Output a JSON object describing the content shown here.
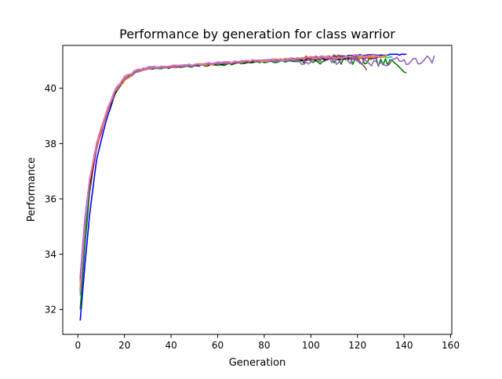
{
  "chart_data": {
    "type": "line",
    "title": "Performance by generation for class warrior",
    "xlabel": "Generation",
    "ylabel": "Performance",
    "xlim": [
      -6.5,
      160.5
    ],
    "ylim": [
      31.1,
      41.55
    ],
    "xticks": [
      0,
      20,
      40,
      60,
      80,
      100,
      120,
      140,
      160
    ],
    "yticks": [
      32,
      34,
      36,
      38,
      40
    ],
    "xtick_labels": [
      "0",
      "20",
      "40",
      "60",
      "80",
      "100",
      "120",
      "140",
      "160"
    ],
    "ytick_labels": [
      "32",
      "34",
      "36",
      "38",
      "40"
    ],
    "grid": false,
    "legend": "none",
    "series": [
      {
        "name": "blue",
        "color": "#0000ff",
        "end": 141,
        "y0": 31.6,
        "noise": 0.02,
        "tailNoise": 0.02,
        "seed": 3,
        "keypoints": [
          [
            1,
            31.6
          ],
          [
            3,
            33.6
          ],
          [
            5,
            35.4
          ],
          [
            8,
            37.4
          ],
          [
            12,
            38.8
          ],
          [
            16,
            39.8
          ],
          [
            20,
            40.3
          ],
          [
            25,
            40.6
          ],
          [
            30,
            40.75
          ],
          [
            40,
            40.8
          ],
          [
            60,
            40.9
          ],
          [
            80,
            41.0
          ],
          [
            100,
            41.1
          ],
          [
            120,
            41.2
          ],
          [
            141,
            41.22
          ]
        ]
      },
      {
        "name": "green",
        "color": "#008000",
        "end": 141,
        "y0": 32.0,
        "noise": 0.04,
        "tailNoise": 0.15,
        "seed": 7,
        "keypoints": [
          [
            1,
            32.0
          ],
          [
            3,
            34.3
          ],
          [
            5,
            36.2
          ],
          [
            8,
            37.9
          ],
          [
            12,
            39.0
          ],
          [
            16,
            39.8
          ],
          [
            20,
            40.3
          ],
          [
            25,
            40.6
          ],
          [
            30,
            40.72
          ],
          [
            40,
            40.75
          ],
          [
            60,
            40.85
          ],
          [
            80,
            40.95
          ],
          [
            100,
            41.0
          ],
          [
            120,
            41.0
          ],
          [
            135,
            40.9
          ],
          [
            141,
            40.7
          ]
        ]
      },
      {
        "name": "red",
        "color": "#ff0000",
        "end": 128,
        "y0": 33.0,
        "noise": 0.03,
        "tailNoise": 0.05,
        "seed": 11,
        "keypoints": [
          [
            1,
            33.0
          ],
          [
            3,
            34.9
          ],
          [
            5,
            36.4
          ],
          [
            8,
            37.8
          ],
          [
            12,
            39.0
          ],
          [
            16,
            39.85
          ],
          [
            20,
            40.3
          ],
          [
            25,
            40.6
          ],
          [
            30,
            40.72
          ],
          [
            40,
            40.78
          ],
          [
            60,
            40.9
          ],
          [
            80,
            41.0
          ],
          [
            100,
            41.1
          ],
          [
            128,
            41.15
          ]
        ]
      },
      {
        "name": "cyan",
        "color": "#00bfbf",
        "end": 135,
        "y0": 32.5,
        "noise": 0.03,
        "tailNoise": 0.05,
        "seed": 13,
        "keypoints": [
          [
            1,
            32.5
          ],
          [
            3,
            34.8
          ],
          [
            5,
            36.5
          ],
          [
            8,
            37.9
          ],
          [
            12,
            39.1
          ],
          [
            16,
            39.9
          ],
          [
            20,
            40.35
          ],
          [
            25,
            40.62
          ],
          [
            30,
            40.72
          ],
          [
            40,
            40.78
          ],
          [
            60,
            40.9
          ],
          [
            80,
            41.0
          ],
          [
            100,
            41.08
          ],
          [
            135,
            41.15
          ]
        ]
      },
      {
        "name": "magenta",
        "color": "#bf00bf",
        "end": 130,
        "y0": 32.7,
        "noise": 0.03,
        "tailNoise": 0.05,
        "seed": 17,
        "keypoints": [
          [
            1,
            32.7
          ],
          [
            3,
            35.0
          ],
          [
            5,
            36.6
          ],
          [
            8,
            38.0
          ],
          [
            12,
            39.1
          ],
          [
            16,
            39.9
          ],
          [
            20,
            40.35
          ],
          [
            25,
            40.62
          ],
          [
            30,
            40.72
          ],
          [
            40,
            40.78
          ],
          [
            60,
            40.9
          ],
          [
            80,
            41.0
          ],
          [
            100,
            41.05
          ],
          [
            130,
            41.1
          ]
        ]
      },
      {
        "name": "olive",
        "color": "#bfbf00",
        "end": 133,
        "y0": 32.8,
        "noise": 0.03,
        "tailNoise": 0.05,
        "seed": 19,
        "keypoints": [
          [
            1,
            32.8
          ],
          [
            3,
            35.0
          ],
          [
            5,
            36.6
          ],
          [
            8,
            38.0
          ],
          [
            12,
            39.1
          ],
          [
            16,
            39.9
          ],
          [
            20,
            40.35
          ],
          [
            25,
            40.62
          ],
          [
            30,
            40.72
          ],
          [
            40,
            40.78
          ],
          [
            60,
            40.9
          ],
          [
            80,
            41.0
          ],
          [
            100,
            41.08
          ],
          [
            133,
            41.15
          ]
        ]
      },
      {
        "name": "black",
        "color": "#000000",
        "end": 118,
        "y0": 32.6,
        "noise": 0.03,
        "tailNoise": 0.05,
        "seed": 23,
        "keypoints": [
          [
            1,
            32.6
          ],
          [
            3,
            34.9
          ],
          [
            5,
            36.5
          ],
          [
            8,
            37.9
          ],
          [
            12,
            39.0
          ],
          [
            16,
            39.85
          ],
          [
            20,
            40.3
          ],
          [
            25,
            40.6
          ],
          [
            30,
            40.72
          ],
          [
            40,
            40.78
          ],
          [
            60,
            40.88
          ],
          [
            80,
            40.98
          ],
          [
            100,
            41.05
          ],
          [
            118,
            41.1
          ]
        ]
      },
      {
        "name": "orange",
        "color": "#ff7f0e",
        "end": 132,
        "y0": 32.9,
        "noise": 0.04,
        "tailNoise": 0.06,
        "seed": 29,
        "keypoints": [
          [
            1,
            32.9
          ],
          [
            3,
            35.1
          ],
          [
            5,
            36.6
          ],
          [
            8,
            37.9
          ],
          [
            12,
            39.0
          ],
          [
            16,
            39.85
          ],
          [
            20,
            40.3
          ],
          [
            25,
            40.6
          ],
          [
            30,
            40.72
          ],
          [
            40,
            40.78
          ],
          [
            60,
            40.9
          ],
          [
            80,
            41.0
          ],
          [
            100,
            41.1
          ],
          [
            132,
            41.18
          ]
        ]
      },
      {
        "name": "brown",
        "color": "#8c564b",
        "end": 124,
        "y0": 33.1,
        "noise": 0.04,
        "tailNoise": 0.1,
        "seed": 31,
        "keypoints": [
          [
            1,
            33.1
          ],
          [
            3,
            35.2
          ],
          [
            5,
            36.7
          ],
          [
            8,
            38.0
          ],
          [
            12,
            39.1
          ],
          [
            16,
            39.9
          ],
          [
            20,
            40.35
          ],
          [
            25,
            40.62
          ],
          [
            30,
            40.72
          ],
          [
            40,
            40.78
          ],
          [
            60,
            40.9
          ],
          [
            80,
            41.0
          ],
          [
            100,
            41.08
          ],
          [
            120,
            41.15
          ],
          [
            124,
            40.75
          ]
        ]
      },
      {
        "name": "purple",
        "color": "#9467bd",
        "end": 153,
        "y0": 33.2,
        "noise": 0.04,
        "tailNoise": 0.15,
        "seed": 37,
        "keypoints": [
          [
            1,
            33.2
          ],
          [
            3,
            35.3
          ],
          [
            5,
            36.7
          ],
          [
            8,
            38.0
          ],
          [
            12,
            39.1
          ],
          [
            16,
            39.9
          ],
          [
            20,
            40.35
          ],
          [
            25,
            40.62
          ],
          [
            30,
            40.72
          ],
          [
            40,
            40.78
          ],
          [
            60,
            40.9
          ],
          [
            80,
            41.0
          ],
          [
            100,
            41.0
          ],
          [
            115,
            41.0
          ],
          [
            125,
            40.9
          ],
          [
            140,
            41.0
          ],
          [
            153,
            41.05
          ]
        ]
      },
      {
        "name": "pink",
        "color": "#e377c2",
        "end": 130,
        "y0": 32.6,
        "noise": 0.04,
        "tailNoise": 0.06,
        "seed": 41,
        "keypoints": [
          [
            1,
            32.6
          ],
          [
            3,
            35.0
          ],
          [
            5,
            36.6
          ],
          [
            8,
            38.0
          ],
          [
            12,
            39.1
          ],
          [
            16,
            39.95
          ],
          [
            20,
            40.4
          ],
          [
            25,
            40.65
          ],
          [
            30,
            40.75
          ],
          [
            40,
            40.8
          ],
          [
            60,
            40.92
          ],
          [
            80,
            41.02
          ],
          [
            100,
            41.1
          ],
          [
            130,
            41.18
          ]
        ]
      }
    ]
  }
}
